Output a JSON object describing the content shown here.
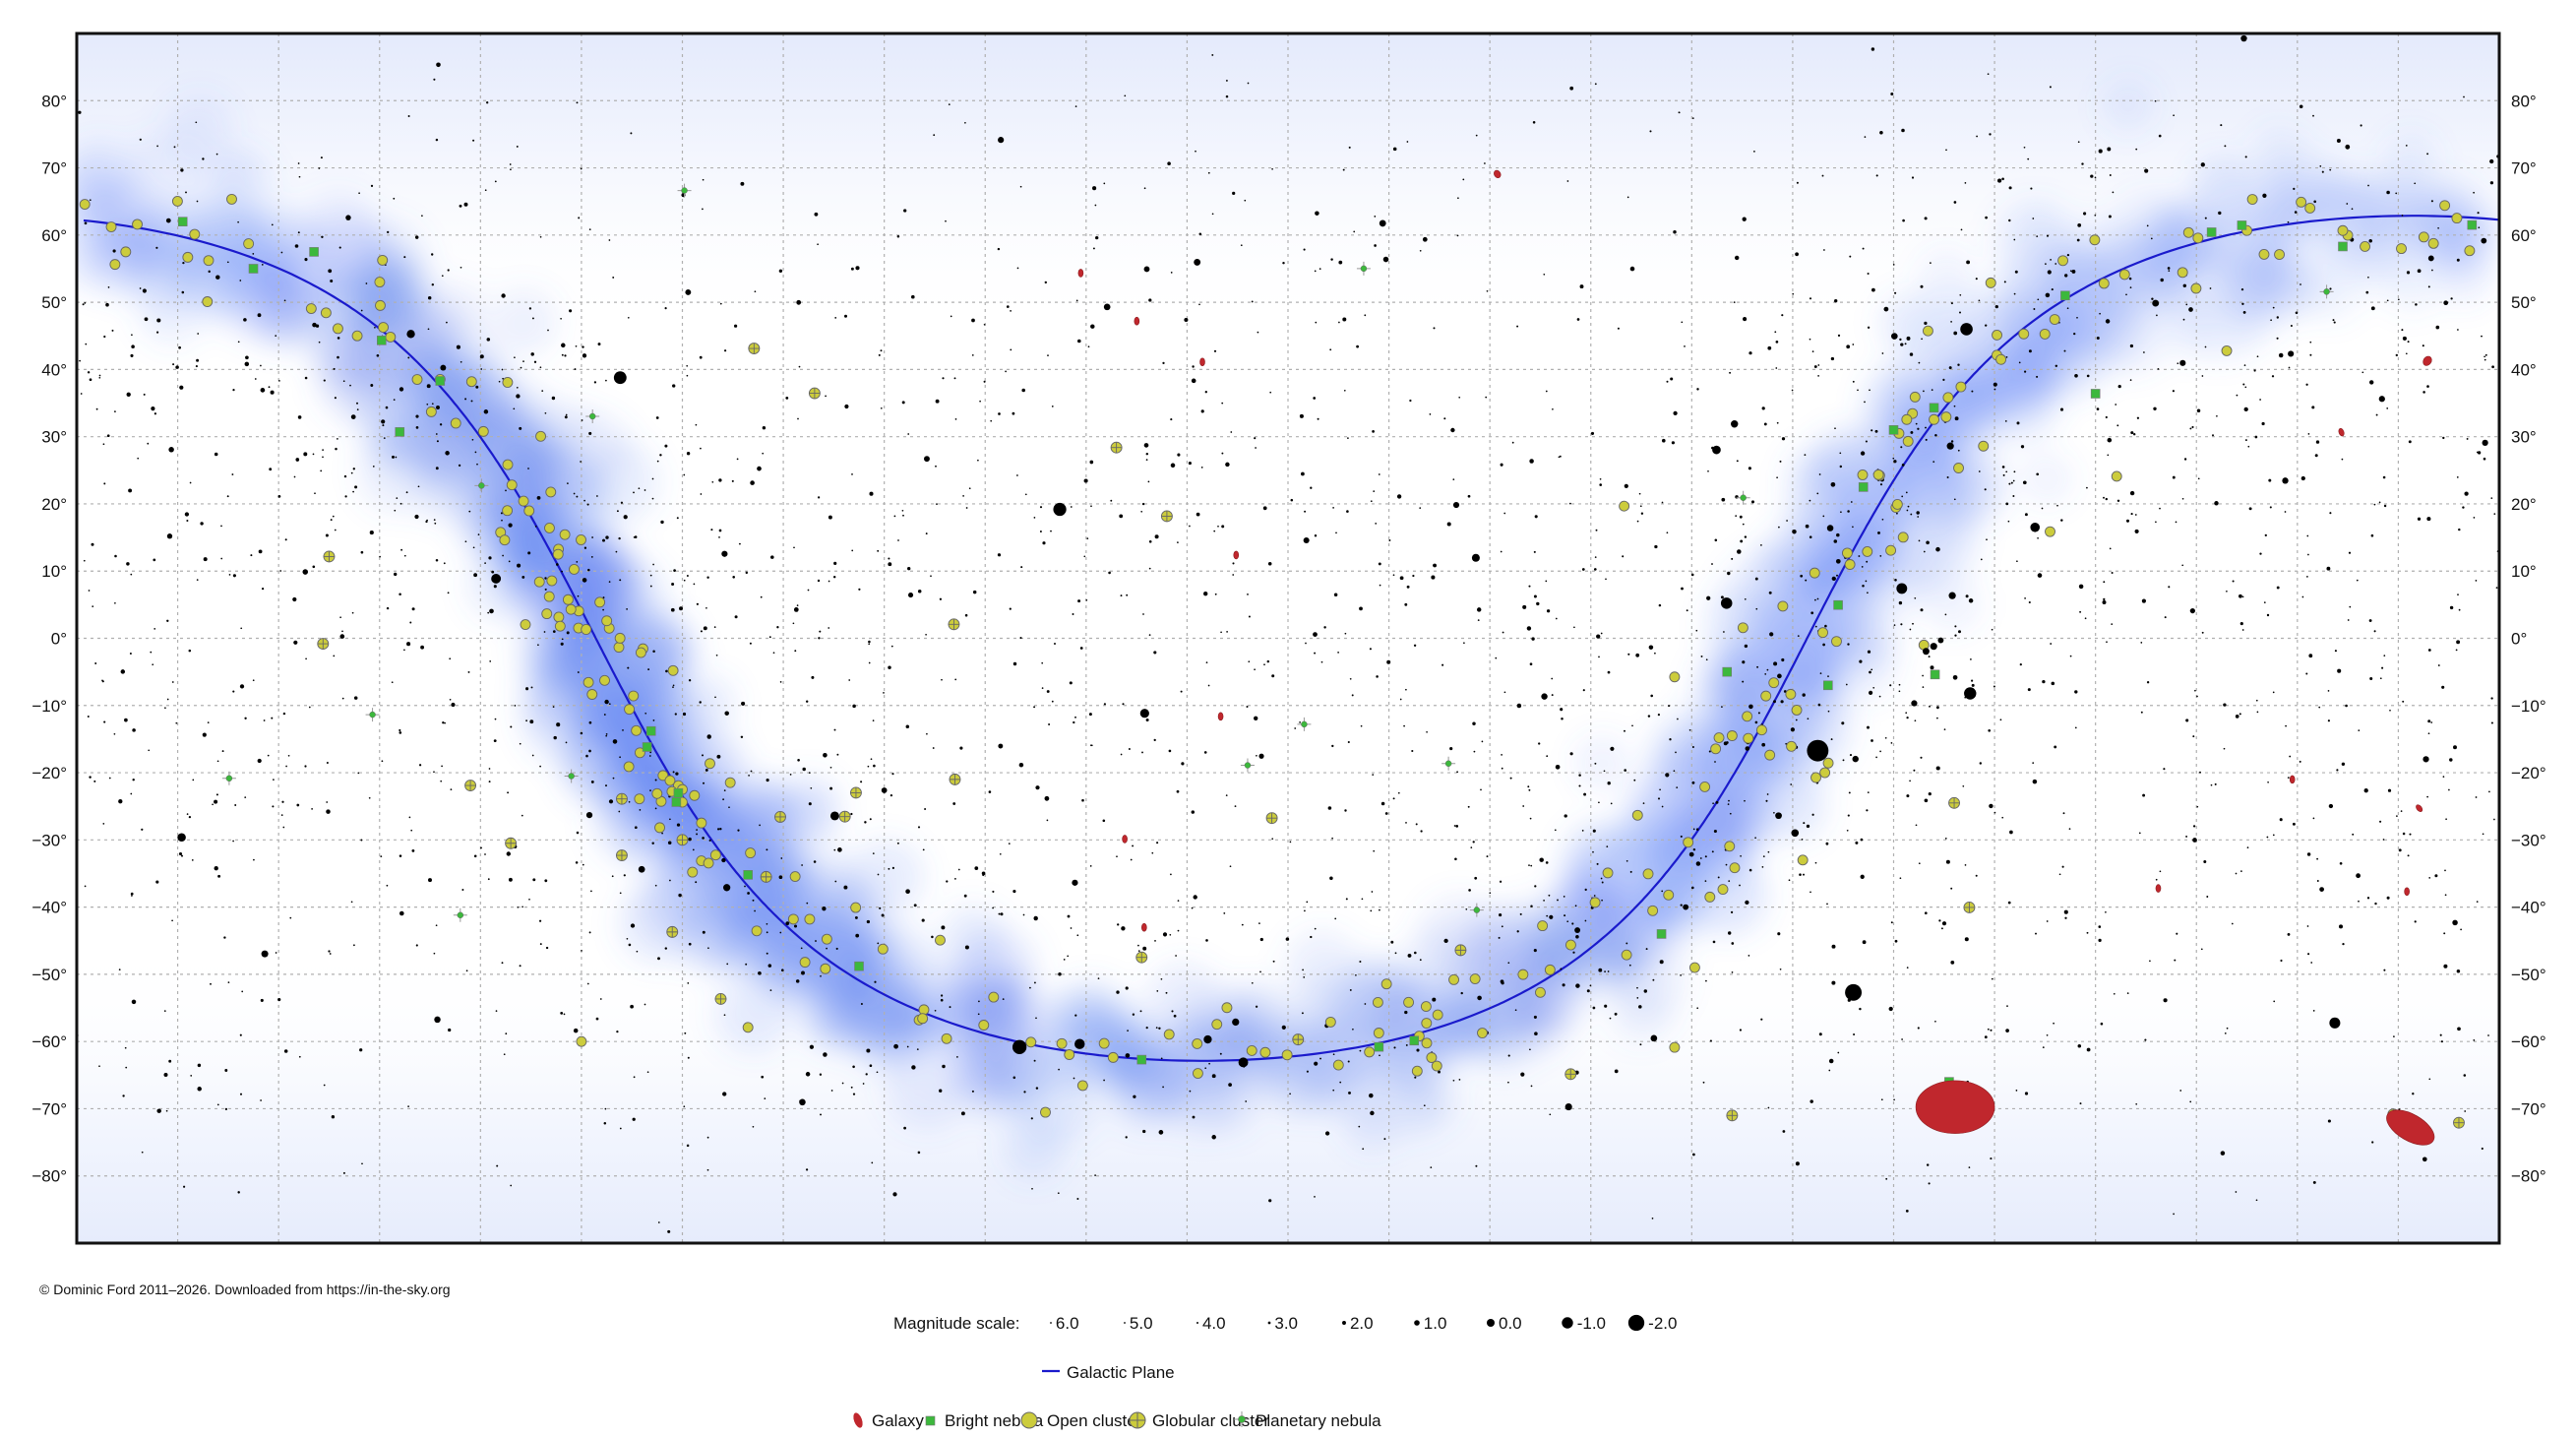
{
  "copyright": "© Dominic Ford 2011–2026. Downloaded from https://in-the-sky.org",
  "chart_data": {
    "type": "scatter",
    "projection": "equirectangular",
    "x_axis": {
      "quantity": "right ascension",
      "range_hours": [
        24,
        0
      ],
      "grid_step_hours": 1,
      "tick_labels_shown": false
    },
    "y_axis": {
      "quantity": "declination",
      "range_deg": [
        -90,
        90
      ],
      "grid_step_deg": 10,
      "tick_labels": [
        "80°",
        "70°",
        "60°",
        "50°",
        "40°",
        "30°",
        "20°",
        "10°",
        "0°",
        "−10°",
        "−20°",
        "−30°",
        "−40°",
        "−50°",
        "−60°",
        "−70°",
        "−80°"
      ],
      "tick_values": [
        80,
        70,
        60,
        50,
        40,
        30,
        20,
        10,
        0,
        -10,
        -20,
        -30,
        -40,
        -50,
        -60,
        -70,
        -80
      ]
    },
    "grid": true,
    "colors": {
      "star": "#000000",
      "galactic_plane": "#1a1acc",
      "milky_way": "#5a7ff0",
      "galaxy": "#c0272d",
      "bright_nebula": "#3cb83c",
      "open_cluster": "#cccc3c",
      "globular_cluster": "#cccc3c",
      "planetary_nebula": "#3cb83c",
      "grid": "#b0b0b0"
    },
    "bright_stars_ra_dec_mag": [
      [
        6.752,
        -16.72,
        -1.46
      ],
      [
        6.399,
        -52.7,
        -0.74
      ],
      [
        14.261,
        19.18,
        -0.05
      ],
      [
        14.66,
        -60.83,
        -0.27
      ],
      [
        18.616,
        38.78,
        0.03
      ],
      [
        5.278,
        46.0,
        0.08
      ],
      [
        5.242,
        -8.2,
        0.13
      ],
      [
        7.655,
        5.22,
        0.34
      ],
      [
        1.629,
        -57.24,
        0.46
      ],
      [
        5.919,
        7.41,
        0.5
      ],
      [
        14.064,
        -60.37,
        0.61
      ],
      [
        19.846,
        8.87,
        0.77
      ],
      [
        12.443,
        -63.1,
        0.77
      ],
      [
        4.599,
        16.51,
        0.85
      ],
      [
        16.49,
        -26.43,
        1.06
      ],
      [
        13.42,
        -11.16,
        0.97
      ],
      [
        7.755,
        28.03,
        1.14
      ],
      [
        22.961,
        -29.62,
        1.16
      ],
      [
        20.69,
        45.28,
        1.25
      ],
      [
        12.795,
        -59.69,
        1.25
      ],
      [
        10.139,
        11.97,
        1.35
      ],
      [
        6.977,
        -28.97,
        1.5
      ],
      [
        7.577,
        31.89,
        1.58
      ],
      [
        17.56,
        -37.1,
        1.62
      ],
      [
        12.519,
        -57.11,
        1.63
      ],
      [
        5.419,
        6.35,
        1.64
      ],
      [
        5.438,
        28.61,
        1.65
      ],
      [
        9.22,
        -69.72,
        1.67
      ],
      [
        5.603,
        -1.2,
        1.69
      ],
      [
        22.137,
        -46.96,
        1.73
      ],
      [
        5.679,
        -1.94,
        1.77
      ],
      [
        12.9,
        55.96,
        1.77
      ],
      [
        11.062,
        61.75,
        1.79
      ],
      [
        3.405,
        49.86,
        1.79
      ],
      [
        7.14,
        -26.39,
        1.84
      ],
      [
        18.403,
        -34.38,
        1.85
      ],
      [
        8.375,
        -59.51,
        1.86
      ],
      [
        13.792,
        49.31,
        1.86
      ],
      [
        5.992,
        44.95,
        1.9
      ],
      [
        16.811,
        -69.03,
        1.92
      ],
      [
        6.628,
        16.4,
        1.93
      ],
      [
        20.427,
        -56.74,
        1.94
      ],
      [
        2.53,
        89.26,
        1.98
      ],
      [
        6.378,
        -17.96,
        1.98
      ],
      [
        9.46,
        -8.66,
        1.98
      ],
      [
        2.12,
        23.46,
        2.0
      ],
      [
        0.726,
        -17.99,
        2.04
      ],
      [
        18.921,
        -26.3,
        2.05
      ],
      [
        14.111,
        -36.37,
        2.06
      ],
      [
        0.14,
        29.09,
        2.06
      ],
      [
        1.162,
        35.62,
        2.05
      ],
      [
        5.796,
        -9.67,
        2.06
      ],
      [
        14.845,
        74.16,
        2.08
      ],
      [
        17.582,
        12.56,
        2.08
      ],
      [
        3.136,
        40.96,
        2.1
      ],
      [
        2.065,
        42.33,
        2.1
      ],
      [
        11.818,
        14.57,
        2.14
      ],
      [
        0.675,
        56.54,
        2.24
      ],
      [
        17.943,
        51.49,
        2.23
      ],
      [
        0.153,
        59.15,
        2.28
      ],
      [
        5.533,
        -0.3,
        2.23
      ],
      [
        15.578,
        26.71,
        2.23
      ],
      [
        23.063,
        28.08,
        2.42
      ],
      [
        23.079,
        15.2,
        2.48
      ],
      [
        21.736,
        9.88,
        2.39
      ],
      [
        20.37,
        40.26,
        2.23
      ],
      [
        3.038,
        4.09,
        2.54
      ],
      [
        21.31,
        62.59,
        2.45
      ],
      [
        11.03,
        56.38,
        2.37
      ],
      [
        13.399,
        54.93,
        2.23
      ],
      [
        16.0,
        -22.62,
        2.29
      ],
      [
        14.848,
        -16.04,
        2.75
      ],
      [
        15.738,
        6.43,
        2.63
      ],
      [
        12.934,
        38.32,
        2.9
      ],
      [
        10.333,
        19.84,
        2.08
      ],
      [
        9.133,
        -43.43,
        2.21
      ],
      [
        8.06,
        -40.0,
        2.25
      ],
      [
        12.263,
        -17.54,
        2.59
      ],
      [
        0.438,
        -42.31,
        2.4
      ]
    ],
    "galaxies_ra_dec_size_deg_angle": [
      [
        5.39,
        -69.75,
        10.0,
        7.0,
        0
      ],
      [
        0.88,
        -72.8,
        5.0,
        3.0,
        30
      ],
      [
        0.712,
        41.27,
        2.0,
        0.8,
        -55
      ],
      [
        1.564,
        30.66,
        1.0,
        0.6,
        -20
      ],
      [
        9.926,
        69.07,
        0.6,
        0.4,
        -30
      ],
      [
        14.053,
        54.35,
        0.5,
        0.5,
        0
      ],
      [
        13.498,
        47.2,
        0.4,
        0.3,
        0
      ],
      [
        12.848,
        41.12,
        0.4,
        0.3,
        0
      ],
      [
        12.514,
        12.39,
        0.4,
        0.4,
        0
      ],
      [
        13.617,
        -29.87,
        0.5,
        0.5,
        0
      ],
      [
        13.425,
        -43.02,
        0.5,
        0.4,
        0
      ],
      [
        3.378,
        -37.21,
        0.4,
        0.3,
        0
      ],
      [
        0.915,
        -37.68,
        0.5,
        0.3,
        0
      ],
      [
        0.793,
        -25.29,
        0.9,
        0.3,
        -40
      ],
      [
        12.667,
        -11.62,
        0.4,
        0.2,
        0
      ],
      [
        2.05,
        -21.0,
        0.3,
        0.2,
        0
      ]
    ],
    "bright_nebulae_ra_dec": [
      [
        5.59,
        -5.39
      ],
      [
        18.06,
        -24.38
      ],
      [
        10.75,
        -59.87
      ],
      [
        18.04,
        -23.03
      ],
      [
        18.31,
        -13.8
      ],
      [
        18.35,
        -16.18
      ],
      [
        20.98,
        44.33
      ],
      [
        6.55,
        4.95
      ],
      [
        4.0,
        36.4
      ],
      [
        2.55,
        61.45
      ],
      [
        2.85,
        60.42
      ],
      [
        0.27,
        61.5
      ],
      [
        22.95,
        62.0
      ],
      [
        21.65,
        57.5
      ],
      [
        20.4,
        38.3
      ],
      [
        5.45,
        -66.0
      ],
      [
        7.65,
        -5.0
      ],
      [
        8.3,
        -44.0
      ],
      [
        11.1,
        -60.8
      ],
      [
        13.45,
        -62.7
      ],
      [
        16.25,
        -48.8
      ],
      [
        17.35,
        -35.2
      ],
      [
        6.65,
        -7.0
      ],
      [
        20.8,
        30.7
      ],
      [
        22.25,
        55.0
      ],
      [
        1.55,
        58.3
      ],
      [
        4.3,
        51.0
      ],
      [
        5.6,
        34.3
      ],
      [
        6.3,
        22.5
      ],
      [
        6.0,
        31.0
      ]
    ],
    "open_clusters_ra_dec": [
      [
        3.79,
        24.1
      ],
      [
        4.45,
        15.87
      ],
      [
        8.67,
        19.67
      ],
      [
        17.9,
        -34.8
      ],
      [
        17.67,
        -32.25
      ],
      [
        2.33,
        57.13
      ],
      [
        6.15,
        24.33
      ],
      [
        11.1,
        -58.73
      ],
      [
        10.72,
        -64.4
      ],
      [
        7.6,
        -14.5
      ],
      [
        7.73,
        -14.8
      ],
      [
        8.17,
        -5.75
      ],
      [
        7.02,
        -8.33
      ],
      [
        6.77,
        -20.72
      ],
      [
        18.53,
        -19.1
      ],
      [
        18.77,
        -6.27
      ],
      [
        1.55,
        60.67
      ],
      [
        2.7,
        42.78
      ],
      [
        5.46,
        35.83
      ],
      [
        5.6,
        32.55
      ],
      [
        5.87,
        32.55
      ],
      [
        20.4,
        38.53
      ],
      [
        21.53,
        48.43
      ],
      [
        12.9,
        -60.33
      ],
      [
        8.17,
        -60.87
      ],
      [
        7.97,
        -49.0
      ],
      [
        10.7,
        -59.2
      ],
      [
        17.35,
        -57.9
      ],
      [
        16.9,
        -41.8
      ],
      [
        19.0,
        -60.0
      ],
      [
        1.33,
        58.3
      ],
      [
        23.4,
        61.6
      ],
      [
        7.82,
        -38.5
      ],
      [
        8.23,
        -38.2
      ],
      [
        9.5,
        -52.7
      ],
      [
        6.9,
        -33.0
      ],
      [
        18.0,
        -22.5
      ],
      [
        5.7,
        -1.0
      ],
      [
        22.9,
        56.7
      ],
      [
        11.5,
        -63.5
      ]
    ],
    "globular_clusters_ra_dec": [
      [
        16.69,
        36.46
      ],
      [
        13.45,
        -47.48
      ],
      [
        0.4,
        -72.08
      ],
      [
        18.6,
        -23.9
      ],
      [
        16.39,
        -26.53
      ],
      [
        13.7,
        28.38
      ],
      [
        15.31,
        2.08
      ],
      [
        21.5,
        12.17
      ],
      [
        21.56,
        -0.82
      ],
      [
        17.29,
        43.13
      ],
      [
        1.05,
        -70.85
      ],
      [
        10.29,
        -46.41
      ],
      [
        17.62,
        -53.67
      ],
      [
        18.6,
        -32.3
      ],
      [
        15.3,
        -21.0
      ],
      [
        12.16,
        -26.75
      ],
      [
        9.2,
        -64.86
      ],
      [
        13.2,
        18.17
      ],
      [
        5.25,
        -40.05
      ],
      [
        18.0,
        -30.0
      ],
      [
        17.03,
        -26.58
      ],
      [
        19.7,
        -30.5
      ],
      [
        16.28,
        -22.98
      ],
      [
        17.17,
        -35.5
      ],
      [
        18.1,
        -43.7
      ],
      [
        20.1,
        -21.9
      ],
      [
        7.6,
        -71.0
      ],
      [
        5.4,
        -24.5
      ],
      [
        11.9,
        -59.7
      ]
    ],
    "planetary_nebulae_ra_dec": [
      [
        18.89,
        33.03
      ],
      [
        19.99,
        22.72
      ],
      [
        22.49,
        -20.84
      ],
      [
        11.25,
        55.02
      ],
      [
        7.49,
        20.91
      ],
      [
        17.98,
        66.63
      ],
      [
        10.13,
        -40.44
      ],
      [
        10.41,
        -18.64
      ],
      [
        21.07,
        -11.36
      ],
      [
        1.71,
        51.58
      ],
      [
        11.84,
        -12.8
      ],
      [
        20.2,
        -41.2
      ],
      [
        19.1,
        -20.5
      ],
      [
        12.4,
        -18.9
      ]
    ],
    "milky_way_shown": true,
    "galactic_plane_shown": true
  },
  "legend": {
    "magnitude_label": "Magnitude scale:",
    "magnitudes": [
      {
        "mag": 6.0,
        "label": "6.0"
      },
      {
        "mag": 5.0,
        "label": "5.0"
      },
      {
        "mag": 4.0,
        "label": "4.0"
      },
      {
        "mag": 3.0,
        "label": "3.0"
      },
      {
        "mag": 2.0,
        "label": "2.0"
      },
      {
        "mag": 1.0,
        "label": "1.0"
      },
      {
        "mag": 0.0,
        "label": "0.0"
      },
      {
        "mag": -1.0,
        "label": "-1.0"
      },
      {
        "mag": -2.0,
        "label": "-2.0"
      }
    ],
    "galactic_plane": "Galactic Plane",
    "objects": {
      "galaxy": "Galaxy",
      "bright_nebula": "Bright nebula",
      "open_cluster": "Open cluster",
      "globular_cluster": "Globular cluster",
      "planetary_nebula": "Planetary nebula"
    }
  }
}
